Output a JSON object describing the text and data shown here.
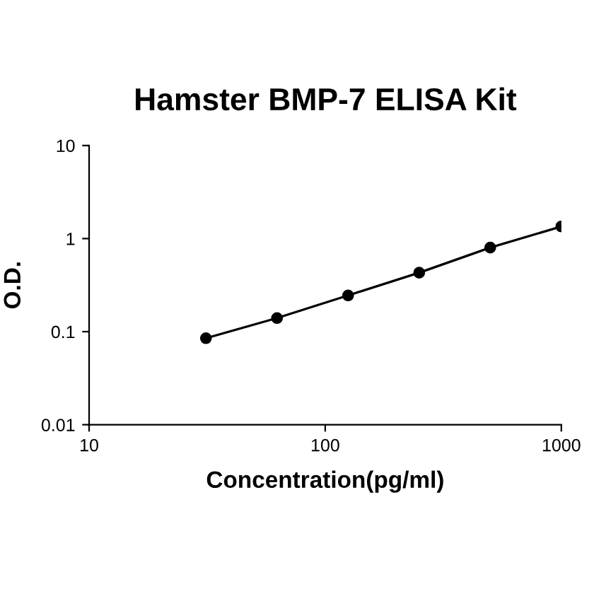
{
  "chart_data": {
    "type": "line",
    "title": "Hamster BMP-7 ELISA Kit",
    "xlabel": "Concentration(pg/ml)",
    "ylabel": "O.D.",
    "log": "xy",
    "xlim": [
      10,
      1000
    ],
    "ylim": [
      0.01,
      10
    ],
    "xticks": [
      10,
      100,
      1000
    ],
    "yticks": [
      0.01,
      0.1,
      1,
      10
    ],
    "marker": "circle",
    "line_style": "solid",
    "grid": false,
    "legend": false,
    "series": [
      {
        "color": "#000000",
        "x": [
          31.25,
          62.5,
          125,
          250,
          500,
          1000
        ],
        "values": [
          0.085,
          0.14,
          0.245,
          0.43,
          0.8,
          1.35
        ]
      }
    ]
  }
}
